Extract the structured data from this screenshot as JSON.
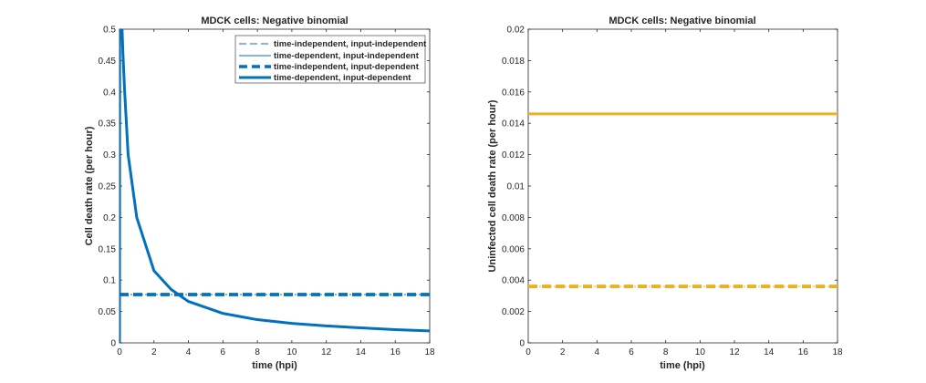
{
  "colors": {
    "blue": "#0072BD",
    "orange": "#EDB120",
    "axis": "#262626"
  },
  "chart_data": [
    {
      "type": "line",
      "title": "MDCK cells: Negative binomial",
      "xlabel": "time (hpi)",
      "ylabel": "Cell death rate (per hour)",
      "xlim": [
        0,
        18
      ],
      "ylim": [
        0,
        0.5
      ],
      "xticks": [
        0,
        2,
        4,
        6,
        8,
        10,
        12,
        14,
        16,
        18
      ],
      "yticks": [
        0,
        0.05,
        0.1,
        0.15,
        0.2,
        0.25,
        0.3,
        0.35,
        0.4,
        0.45,
        0.5
      ],
      "grid": false,
      "legend": "top-right",
      "series": [
        {
          "name": "time-independent, input-independent",
          "style": "dashed",
          "width": "thin",
          "color": "#0072BD",
          "x": [
            0,
            18
          ],
          "y": [
            0.077,
            0.077
          ]
        },
        {
          "name": "time-dependent, input-independent",
          "style": "solid",
          "width": "thin",
          "color": "#0072BD",
          "x": [
            0.05,
            0.1,
            0.15,
            0.2,
            0.3,
            0.5,
            1,
            2,
            3,
            4,
            6,
            8,
            10,
            12,
            14,
            16,
            18
          ],
          "y": [
            0.5,
            0.5,
            0.5,
            0.46,
            0.4,
            0.3,
            0.2,
            0.115,
            0.085,
            0.066,
            0.047,
            0.037,
            0.031,
            0.027,
            0.024,
            0.021,
            0.019
          ]
        },
        {
          "name": "time-independent, input-dependent",
          "style": "dashed",
          "width": "thick",
          "color": "#0072BD",
          "x": [
            0,
            18
          ],
          "y": [
            0.077,
            0.077
          ]
        },
        {
          "name": "time-dependent, input-dependent",
          "style": "solid",
          "width": "thick",
          "color": "#0072BD",
          "x": [
            0,
            0.01,
            0.03,
            0.05,
            0.1,
            0.15,
            0.2,
            0.3,
            0.5,
            1,
            2,
            3,
            4,
            6,
            8,
            10,
            12,
            14,
            16,
            18
          ],
          "y": [
            0,
            0.5,
            0.5,
            0.5,
            0.5,
            0.5,
            0.46,
            0.4,
            0.3,
            0.2,
            0.115,
            0.085,
            0.066,
            0.047,
            0.037,
            0.031,
            0.027,
            0.024,
            0.021,
            0.019
          ]
        }
      ]
    },
    {
      "type": "line",
      "title": "MDCK cells: Negative binomial",
      "xlabel": "time (hpi)",
      "ylabel": "Uninfected cell death rate (per hour)",
      "xlim": [
        0,
        18
      ],
      "ylim": [
        0,
        0.02
      ],
      "xticks": [
        0,
        2,
        4,
        6,
        8,
        10,
        12,
        14,
        16,
        18
      ],
      "yticks": [
        0,
        0.002,
        0.004,
        0.006,
        0.008,
        0.01,
        0.012,
        0.014,
        0.016,
        0.018,
        0.02
      ],
      "grid": false,
      "series": [
        {
          "style": "solid",
          "width": "thick",
          "color": "#EDB120",
          "x": [
            0,
            18
          ],
          "y": [
            0.0146,
            0.0146
          ]
        },
        {
          "style": "dashed",
          "width": "thin",
          "color": "#EDB120",
          "x": [
            0,
            18
          ],
          "y": [
            0.0036,
            0.0036
          ]
        },
        {
          "style": "dashed",
          "width": "thick",
          "color": "#EDB120",
          "x": [
            0,
            18
          ],
          "y": [
            0.0036,
            0.0036
          ]
        }
      ]
    }
  ]
}
